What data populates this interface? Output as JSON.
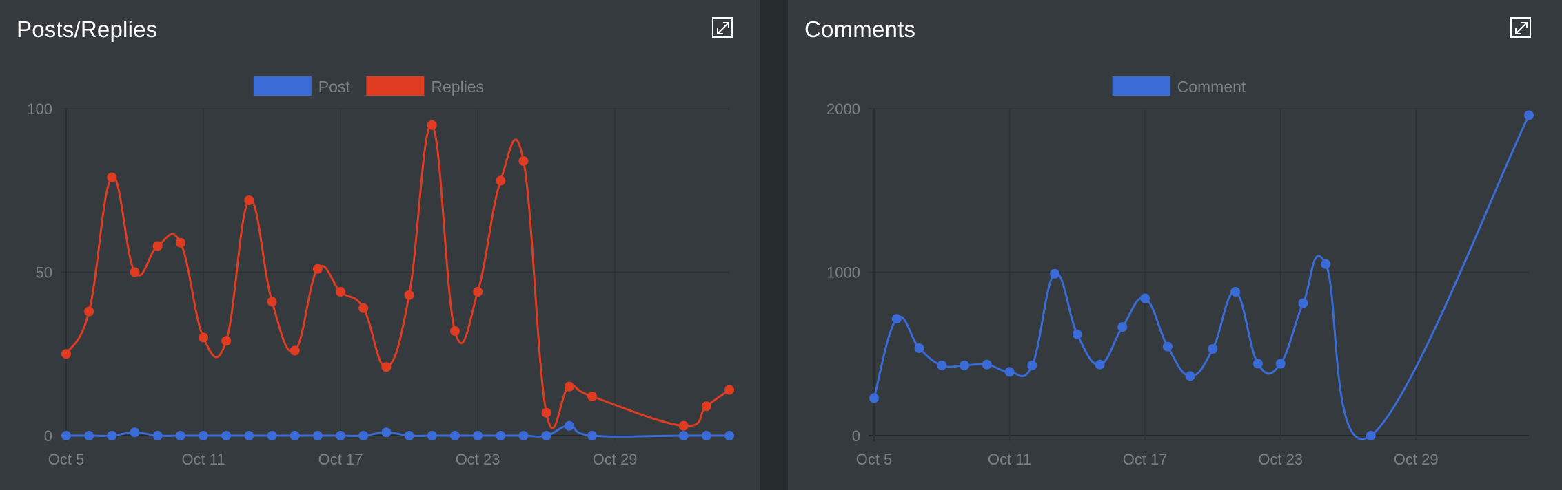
{
  "colors": {
    "post": "#3a6bd6",
    "replies": "#df3c22",
    "comment": "#3a6bd6",
    "panel": "#343a3e",
    "grid": "#2b3134",
    "axis": "#202527",
    "tick_text": "#7b8186"
  },
  "panels": [
    {
      "title": "Posts/Replies",
      "expand_icon": "expand-icon"
    },
    {
      "title": "Comments",
      "expand_icon": "expand-icon"
    }
  ],
  "chart_data": [
    {
      "type": "line",
      "x": [
        "Oct 5",
        "Oct 6",
        "Oct 7",
        "Oct 8",
        "Oct 9",
        "Oct 10",
        "Oct 11",
        "Oct 12",
        "Oct 13",
        "Oct 14",
        "Oct 15",
        "Oct 16",
        "Oct 17",
        "Oct 18",
        "Oct 19",
        "Oct 20",
        "Oct 21",
        "Oct 22",
        "Oct 23",
        "Oct 24",
        "Oct 25",
        "Oct 26",
        "Oct 27",
        "Oct 28",
        "Nov 1",
        "Nov 2",
        "Nov 3"
      ],
      "x_ticks": [
        "Oct 5",
        "Oct 11",
        "Oct 17",
        "Oct 23",
        "Oct 29"
      ],
      "y_ticks": [
        "0",
        "50",
        "100"
      ],
      "ylim": [
        0,
        100
      ],
      "legend": "top-center",
      "grid": true,
      "series": [
        {
          "name": "Post",
          "values": [
            0,
            0,
            0,
            1,
            0,
            0,
            0,
            0,
            0,
            0,
            0,
            0,
            0,
            0,
            1,
            0,
            0,
            0,
            0,
            0,
            0,
            0,
            3,
            0,
            0,
            0,
            0
          ]
        },
        {
          "name": "Replies",
          "values": [
            25,
            38,
            79,
            50,
            58,
            59,
            30,
            29,
            72,
            41,
            26,
            51,
            44,
            39,
            21,
            43,
            95,
            32,
            44,
            78,
            84,
            7,
            15,
            12,
            3,
            9,
            14
          ]
        }
      ]
    },
    {
      "type": "line",
      "x": [
        "Oct 5",
        "Oct 6",
        "Oct 7",
        "Oct 8",
        "Oct 9",
        "Oct 10",
        "Oct 11",
        "Oct 12",
        "Oct 13",
        "Oct 14",
        "Oct 15",
        "Oct 16",
        "Oct 17",
        "Oct 18",
        "Oct 19",
        "Oct 20",
        "Oct 21",
        "Oct 22",
        "Oct 23",
        "Oct 24",
        "Oct 25",
        "Oct 27",
        "Nov 3"
      ],
      "x_ticks": [
        "Oct 5",
        "Oct 11",
        "Oct 17",
        "Oct 23",
        "Oct 29"
      ],
      "y_ticks": [
        "0",
        "1000",
        "2000"
      ],
      "ylim": [
        0,
        2000
      ],
      "legend": "top-center",
      "grid": true,
      "series": [
        {
          "name": "Comment",
          "values": [
            230,
            715,
            535,
            430,
            430,
            435,
            390,
            430,
            990,
            620,
            435,
            665,
            840,
            545,
            365,
            530,
            880,
            440,
            440,
            810,
            1050,
            0,
            1960
          ]
        }
      ]
    }
  ]
}
